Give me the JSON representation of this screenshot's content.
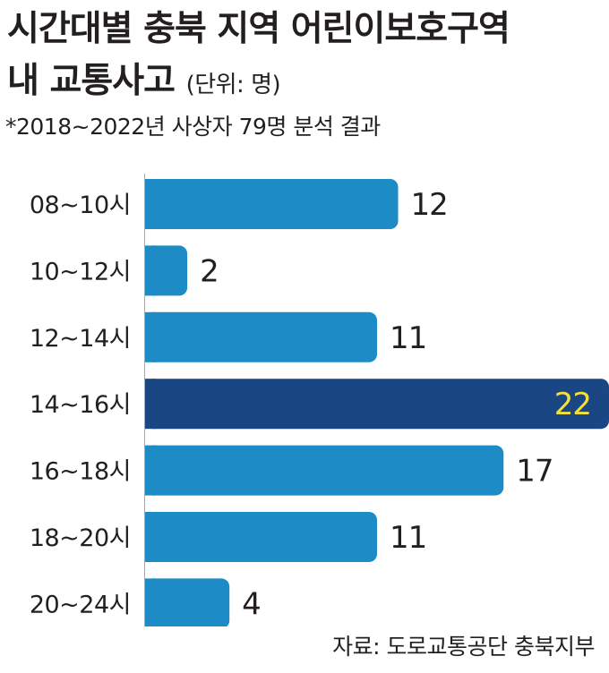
{
  "header": {
    "title_line1": "시간대별 충북 지역 어린이보호구역",
    "title_line2": "내 교통사고",
    "unit": "(단위: 명)",
    "subtitle": "*2018~2022년 사상자 79명 분석 결과"
  },
  "footer": {
    "source": "자료: 도로교통공단 충북지부"
  },
  "colors": {
    "bar": "#1d8bc6",
    "highlight_bar": "#1a4784",
    "highlight_label": "#f3e13b",
    "text": "#231f20"
  },
  "chart_data": {
    "type": "bar",
    "orientation": "horizontal",
    "categories": [
      "08~10시",
      "10~12시",
      "12~14시",
      "14~16시",
      "16~18시",
      "18~20시",
      "20~24시"
    ],
    "values": [
      12,
      2,
      11,
      22,
      17,
      11,
      4
    ],
    "value_labels": [
      "12",
      "2",
      "11",
      "22",
      "17",
      "11",
      "4"
    ],
    "highlight_index": 3,
    "xlim": [
      0,
      22
    ],
    "grid": false,
    "legend": "none"
  }
}
